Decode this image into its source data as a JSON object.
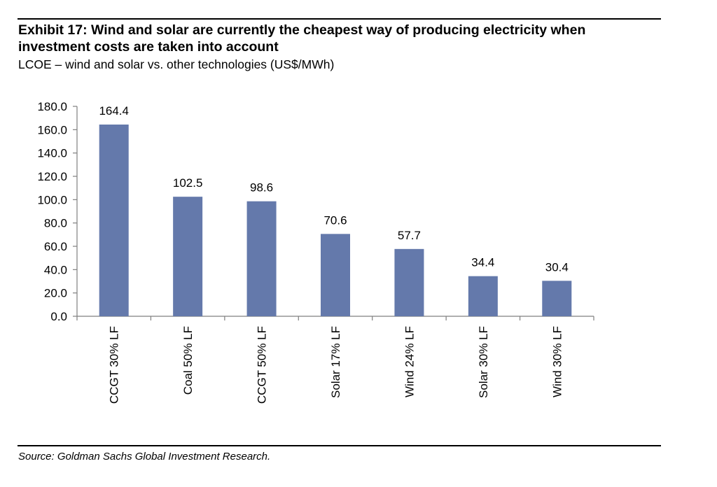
{
  "exhibit": {
    "title": "Exhibit 17: Wind and solar are currently the cheapest way of producing electricity when investment costs are taken into account",
    "subtitle": "LCOE – wind and solar vs. other technologies (US$/MWh)",
    "source": "Source: Goldman Sachs Global Investment Research."
  },
  "colors": {
    "bar": "#6479AB",
    "axis": "#7F7F7F"
  },
  "chart_data": {
    "type": "bar",
    "categories": [
      "CCGT 30% LF",
      "Coal 50% LF",
      "CCGT 50% LF",
      "Solar 17% LF",
      "Wind 24% LF",
      "Solar 30% LF",
      "Wind 30% LF"
    ],
    "values": [
      164.4,
      102.5,
      98.6,
      70.6,
      57.7,
      34.4,
      30.4
    ],
    "data_labels": [
      "164.4",
      "102.5",
      "98.6",
      "70.6",
      "57.7",
      "34.4",
      "30.4"
    ],
    "yticks": [
      "0.0",
      "20.0",
      "40.0",
      "60.0",
      "80.0",
      "100.0",
      "120.0",
      "140.0",
      "160.0",
      "180.0"
    ],
    "ylim": [
      0,
      180
    ],
    "title": "",
    "xlabel": "",
    "ylabel": "",
    "grid": false,
    "legend": "none"
  }
}
